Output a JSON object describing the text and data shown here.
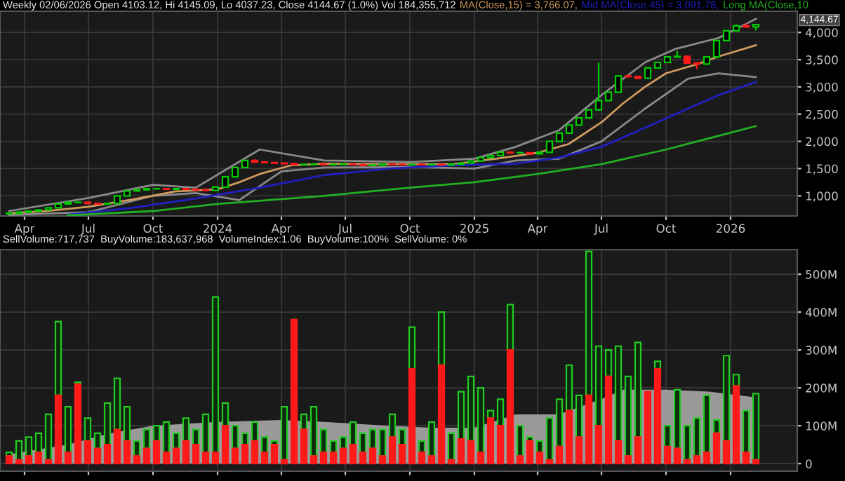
{
  "chart_data": [
    {
      "type": "candlestick",
      "title": "Weekly 02/06/2026 Open 4103.12, Hi 4145.09, Lo 4037.23, Close 4144.67 (1.0%) Vol 184,355,712",
      "legend": "top right",
      "grid": true,
      "tick_labels": [
        "x",
        "y"
      ],
      "x": [
        "2023-03-10",
        "2023-03-24",
        "2023-04-07",
        "2023-04-21",
        "2023-05-05",
        "2023-05-19",
        "2023-06-02",
        "2023-06-16",
        "2023-06-30",
        "2023-07-14",
        "2023-07-28",
        "2023-08-11",
        "2023-08-25",
        "2023-09-08",
        "2023-09-22",
        "2023-10-06",
        "2023-10-20",
        "2023-11-03",
        "2023-11-17",
        "2023-12-01",
        "2023-12-15",
        "2023-12-29",
        "2024-01-12",
        "2024-01-26",
        "2024-02-09",
        "2024-02-23",
        "2024-03-08",
        "2024-03-22",
        "2024-04-05",
        "2024-04-19",
        "2024-05-03",
        "2024-05-17",
        "2024-05-31",
        "2024-06-14",
        "2024-06-28",
        "2024-07-12",
        "2024-07-26",
        "2024-08-09",
        "2024-08-23",
        "2024-09-06",
        "2024-09-20",
        "2024-10-04",
        "2024-10-18",
        "2024-11-01",
        "2024-11-15",
        "2024-11-29",
        "2024-12-13",
        "2024-12-27",
        "2025-01-10",
        "2025-01-24",
        "2025-02-07",
        "2025-02-21",
        "2025-03-07",
        "2025-03-21",
        "2025-04-04",
        "2025-04-18",
        "2025-05-02",
        "2025-05-16",
        "2025-05-30",
        "2025-06-13",
        "2025-06-27",
        "2025-07-11",
        "2025-07-25",
        "2025-08-08",
        "2025-08-22",
        "2025-09-05",
        "2025-09-19",
        "2025-10-03",
        "2025-10-17",
        "2025-10-31",
        "2025-11-14",
        "2025-11-28",
        "2025-12-12",
        "2025-12-26",
        "2026-01-09",
        "2026-01-23",
        "2026-02-06"
      ],
      "ohlc": [
        [
          670,
          690,
          660,
          680
        ],
        [
          680,
          710,
          670,
          700
        ],
        [
          700,
          730,
          690,
          720
        ],
        [
          720,
          750,
          710,
          740
        ],
        [
          740,
          790,
          730,
          780
        ],
        [
          780,
          860,
          770,
          850
        ],
        [
          850,
          890,
          840,
          880
        ],
        [
          880,
          895,
          865,
          880
        ],
        [
          880,
          890,
          850,
          860
        ],
        [
          860,
          870,
          840,
          850
        ],
        [
          850,
          870,
          840,
          860
        ],
        [
          860,
          1010,
          850,
          1000
        ],
        [
          1000,
          1100,
          990,
          1090
        ],
        [
          1090,
          1120,
          1080,
          1110
        ],
        [
          1110,
          1140,
          1100,
          1130
        ],
        [
          1130,
          1145,
          1115,
          1130
        ],
        [
          1130,
          1140,
          1110,
          1120
        ],
        [
          1120,
          1140,
          1110,
          1130
        ],
        [
          1130,
          1140,
          1110,
          1120
        ],
        [
          1120,
          1130,
          1100,
          1110
        ],
        [
          1110,
          1120,
          1090,
          1100
        ],
        [
          1100,
          1170,
          1090,
          1160
        ],
        [
          1160,
          1360,
          1150,
          1350
        ],
        [
          1350,
          1530,
          1340,
          1520
        ],
        [
          1520,
          1660,
          1510,
          1650
        ],
        [
          1650,
          1670,
          1610,
          1620
        ],
        [
          1620,
          1630,
          1600,
          1610
        ],
        [
          1610,
          1620,
          1590,
          1600
        ],
        [
          1600,
          1610,
          1580,
          1590
        ],
        [
          1590,
          1600,
          1560,
          1570
        ],
        [
          1570,
          1585,
          1560,
          1575
        ],
        [
          1575,
          1590,
          1565,
          1580
        ],
        [
          1580,
          1590,
          1560,
          1570
        ],
        [
          1570,
          1585,
          1560,
          1575
        ],
        [
          1575,
          1590,
          1565,
          1580
        ],
        [
          1580,
          1590,
          1560,
          1570
        ],
        [
          1570,
          1580,
          1550,
          1560
        ],
        [
          1560,
          1575,
          1550,
          1565
        ],
        [
          1565,
          1590,
          1555,
          1580
        ],
        [
          1580,
          1590,
          1565,
          1575
        ],
        [
          1575,
          1585,
          1560,
          1570
        ],
        [
          1570,
          1585,
          1560,
          1575
        ],
        [
          1575,
          1585,
          1560,
          1570
        ],
        [
          1570,
          1585,
          1560,
          1575
        ],
        [
          1575,
          1585,
          1555,
          1565
        ],
        [
          1565,
          1590,
          1555,
          1580
        ],
        [
          1580,
          1610,
          1570,
          1600
        ],
        [
          1600,
          1650,
          1590,
          1640
        ],
        [
          1640,
          1710,
          1630,
          1700
        ],
        [
          1700,
          1750,
          1690,
          1740
        ],
        [
          1740,
          1810,
          1730,
          1800
        ],
        [
          1800,
          1820,
          1780,
          1790
        ],
        [
          1790,
          1810,
          1780,
          1790
        ],
        [
          1790,
          1800,
          1760,
          1770
        ],
        [
          1770,
          1810,
          1760,
          1800
        ],
        [
          1800,
          2010,
          1790,
          2000
        ],
        [
          2000,
          2160,
          1990,
          2150
        ],
        [
          2150,
          2310,
          2140,
          2300
        ],
        [
          2300,
          2440,
          2290,
          2430
        ],
        [
          2430,
          2590,
          2420,
          2580
        ],
        [
          2580,
          3450,
          2570,
          2750
        ],
        [
          2750,
          2910,
          2740,
          2900
        ],
        [
          2900,
          3210,
          2890,
          3200
        ],
        [
          3200,
          3220,
          3170,
          3190
        ],
        [
          3190,
          3200,
          3140,
          3160
        ],
        [
          3160,
          3360,
          3150,
          3350
        ],
        [
          3350,
          3460,
          3340,
          3450
        ],
        [
          3450,
          3560,
          3440,
          3550
        ],
        [
          3550,
          3660,
          3540,
          3560
        ],
        [
          3560,
          3570,
          3420,
          3440
        ],
        [
          3440,
          3450,
          3330,
          3420
        ],
        [
          3420,
          3560,
          3410,
          3550
        ],
        [
          3550,
          3860,
          3540,
          3850
        ],
        [
          3850,
          4040,
          3840,
          4030
        ],
        [
          4030,
          4150,
          4020,
          4120
        ],
        [
          4120,
          4170,
          4090,
          4100
        ],
        [
          4103.12,
          4145.09,
          4037.23,
          4144.67
        ]
      ],
      "series": [
        {
          "type": "line",
          "color": "#8a8a8a",
          "x": [
            "2023-03-10",
            "2023-07-01",
            "2023-10-01",
            "2023-12-01",
            "2024-03-01",
            "2024-06-01",
            "2024-10-01",
            "2025-01-01",
            "2025-03-01",
            "2025-05-01",
            "2025-07-01",
            "2025-09-01",
            "2025-10-15",
            "2025-12-15",
            "2026-02-06"
          ],
          "values": [
            720,
            960,
            1200,
            1150,
            1850,
            1650,
            1620,
            1680,
            1900,
            2200,
            2850,
            3450,
            3700,
            3900,
            4250
          ]
        },
        {
          "type": "line",
          "color": "#8a8a8a",
          "x": [
            "2023-03-10",
            "2023-07-01",
            "2023-10-01",
            "2023-12-01",
            "2024-02-01",
            "2024-04-01",
            "2024-06-01",
            "2024-10-01",
            "2025-01-01",
            "2025-03-01",
            "2025-05-01",
            "2025-07-01",
            "2025-09-01",
            "2025-11-01",
            "2025-12-15",
            "2026-02-06"
          ],
          "values": [
            650,
            700,
            1000,
            1050,
            920,
            1450,
            1520,
            1530,
            1500,
            1650,
            1680,
            2000,
            2600,
            3150,
            3250,
            3180
          ]
        },
        {
          "type": "line",
          "name": "MA(Close,15) = 3,766.07,",
          "color": "#d09a60",
          "x": [
            "2023-03-10",
            "2023-05-01",
            "2023-07-01",
            "2023-09-01",
            "2023-11-01",
            "2024-01-01",
            "2024-02-01",
            "2024-03-01",
            "2024-04-15",
            "2024-06-01",
            "2024-09-01",
            "2024-12-01",
            "2025-02-01",
            "2025-04-01",
            "2025-05-15",
            "2025-07-01",
            "2025-08-01",
            "2025-09-01",
            "2025-10-01",
            "2025-11-15",
            "2025-12-15",
            "2026-02-06"
          ],
          "values": [
            680,
            720,
            800,
            930,
            1080,
            1120,
            1250,
            1400,
            1560,
            1590,
            1580,
            1580,
            1680,
            1790,
            1950,
            2350,
            2700,
            3000,
            3250,
            3420,
            3560,
            3766.07
          ]
        },
        {
          "type": "line",
          "name": "Mid MA(Close,45) = 3,091.78,",
          "color": "#2020c0",
          "x": [
            "2023-06-01",
            "2023-09-01",
            "2023-12-01",
            "2024-03-01",
            "2024-06-01",
            "2024-09-01",
            "2024-12-01",
            "2025-03-01",
            "2025-05-01",
            "2025-07-01",
            "2025-09-01",
            "2025-11-01",
            "2025-12-15",
            "2026-02-06"
          ],
          "values": [
            650,
            780,
            950,
            1150,
            1380,
            1500,
            1560,
            1590,
            1700,
            1900,
            2250,
            2600,
            2850,
            3091.78
          ]
        },
        {
          "type": "line",
          "name": "Long MA(Close,10",
          "color": "#22b022",
          "x": [
            "2023-06-01",
            "2023-10-01",
            "2024-01-01",
            "2024-06-01",
            "2024-10-01",
            "2025-01-01",
            "2025-04-01",
            "2025-07-01",
            "2025-10-01",
            "2026-02-06"
          ],
          "values": [
            640,
            720,
            850,
            1000,
            1150,
            1250,
            1400,
            1580,
            1850,
            2280
          ]
        }
      ],
      "xlim": [
        "2023-02-25",
        "2026-04-06"
      ],
      "ylim": [
        630,
        4390
      ],
      "xticks": [
        {
          "value": "2023-04-01",
          "label": "Apr"
        },
        {
          "value": "2023-07-01",
          "label": "Jul"
        },
        {
          "value": "2023-10-01",
          "label": "Oct"
        },
        {
          "value": "2024-01-01",
          "label": "2024"
        },
        {
          "value": "2024-04-01",
          "label": "Apr"
        },
        {
          "value": "2024-07-01",
          "label": "Jul"
        },
        {
          "value": "2024-10-01",
          "label": "Oct"
        },
        {
          "value": "2025-01-01",
          "label": "2025"
        },
        {
          "value": "2025-04-01",
          "label": "Apr"
        },
        {
          "value": "2025-07-01",
          "label": "Jul"
        },
        {
          "value": "2025-10-01",
          "label": "Oct"
        },
        {
          "value": "2026-01-01",
          "label": "2026"
        }
      ],
      "yticks": [
        {
          "value": 1000,
          "label": "1,000"
        },
        {
          "value": 1500,
          "label": "1,500"
        },
        {
          "value": 2000,
          "label": "2,000"
        },
        {
          "value": 2500,
          "label": "2,500"
        },
        {
          "value": 3000,
          "label": "3,000"
        },
        {
          "value": 3500,
          "label": "3,500"
        },
        {
          "value": 4000,
          "label": "4,000"
        }
      ],
      "annotations": [
        "4,144.67"
      ]
    },
    {
      "type": "bar",
      "stacked": true,
      "title": "SellVolume:717,737  BuyVolume:183,637,968  VolumeIndex:1.06  BuyVolume:100%  SellVolume: 0%",
      "grid": true,
      "tick_labels": "y",
      "x": [
        "2023-03-10",
        "2023-03-24",
        "2023-04-07",
        "2023-04-21",
        "2023-05-05",
        "2023-05-19",
        "2023-06-02",
        "2023-06-16",
        "2023-06-30",
        "2023-07-14",
        "2023-07-28",
        "2023-08-11",
        "2023-08-25",
        "2023-09-08",
        "2023-09-22",
        "2023-10-06",
        "2023-10-20",
        "2023-11-03",
        "2023-11-17",
        "2023-12-01",
        "2023-12-15",
        "2023-12-29",
        "2024-01-12",
        "2024-01-26",
        "2024-02-09",
        "2024-02-23",
        "2024-03-08",
        "2024-03-22",
        "2024-04-05",
        "2024-04-19",
        "2024-05-03",
        "2024-05-17",
        "2024-05-31",
        "2024-06-14",
        "2024-06-28",
        "2024-07-12",
        "2024-07-26",
        "2024-08-09",
        "2024-08-23",
        "2024-09-06",
        "2024-09-20",
        "2024-10-04",
        "2024-10-18",
        "2024-11-01",
        "2024-11-15",
        "2024-11-29",
        "2024-12-13",
        "2024-12-27",
        "2025-01-10",
        "2025-01-24",
        "2025-02-07",
        "2025-02-21",
        "2025-03-07",
        "2025-03-21",
        "2025-04-04",
        "2025-04-18",
        "2025-05-02",
        "2025-05-16",
        "2025-05-30",
        "2025-06-13",
        "2025-06-27",
        "2025-07-11",
        "2025-07-25",
        "2025-08-08",
        "2025-08-22",
        "2025-09-05",
        "2025-09-19",
        "2025-10-03",
        "2025-10-17",
        "2025-10-31",
        "2025-11-14",
        "2025-11-28",
        "2025-12-12",
        "2025-12-26",
        "2026-01-09",
        "2026-01-23",
        "2026-02-06"
      ],
      "series": [
        {
          "type": "area",
          "color": "#9a9a9a",
          "x": [
            "2023-03-10",
            "2023-06-01",
            "2023-08-01",
            "2023-10-01",
            "2024-01-01",
            "2024-04-01",
            "2024-06-01",
            "2024-09-01",
            "2024-11-01",
            "2025-01-01",
            "2025-03-01",
            "2025-05-01",
            "2025-07-01",
            "2025-08-01",
            "2025-10-01",
            "2025-12-01",
            "2026-02-06"
          ],
          "values": [
            25,
            50,
            80,
            100,
            110,
            115,
            110,
            100,
            95,
            95,
            130,
            130,
            170,
            195,
            195,
            190,
            175
          ]
        },
        {
          "type": "bar",
          "color": "#ff1a1a",
          "values": [
            20,
            10,
            20,
            30,
            10,
            180,
            30,
            210,
            60,
            40,
            50,
            90,
            60,
            20,
            40,
            60,
            30,
            40,
            60,
            50,
            30,
            30,
            100,
            40,
            50,
            60,
            30,
            50,
            10,
            380,
            90,
            20,
            30,
            30,
            40,
            50,
            30,
            40,
            20,
            70,
            50,
            250,
            30,
            20,
            260,
            10,
            65,
            60,
            30,
            120,
            100,
            300,
            20,
            60,
            30,
            10,
            45,
            140,
            70,
            180,
            100,
            230,
            60,
            20,
            70,
            190,
            250,
            45,
            40,
            10,
            20,
            30,
            80,
            60,
            205,
            30,
            10
          ]
        },
        {
          "type": "bar",
          "color": "#22cc22",
          "values": [
            10,
            50,
            50,
            50,
            120,
            195,
            120,
            5,
            60,
            40,
            110,
            135,
            90,
            40,
            50,
            40,
            80,
            40,
            60,
            40,
            100,
            410,
            60,
            60,
            30,
            50,
            40,
            10,
            140,
            0,
            40,
            130,
            60,
            30,
            30,
            60,
            50,
            50,
            70,
            60,
            40,
            110,
            30,
            90,
            140,
            70,
            125,
            170,
            170,
            20,
            70,
            120,
            80,
            10,
            30,
            110,
            125,
            120,
            110,
            380,
            210,
            70,
            250,
            210,
            250,
            0,
            20,
            55,
            155,
            90,
            100,
            150,
            35,
            225,
            30,
            110,
            175
          ]
        }
      ],
      "xlim": [
        "2023-02-25",
        "2026-04-06"
      ],
      "ylim": [
        -20,
        565
      ],
      "xticks": [
        "2023-04-01",
        "2023-07-01",
        "2023-10-01",
        "2024-01-01",
        "2024-04-01",
        "2024-07-01",
        "2024-10-01",
        "2025-01-01",
        "2025-04-01",
        "2025-07-01",
        "2025-10-01",
        "2026-01-01"
      ],
      "yticks": [
        0,
        {
          "value": 100,
          "label": "100M"
        },
        {
          "value": 200,
          "label": "200M"
        },
        {
          "value": 300,
          "label": "300M"
        },
        {
          "value": 400,
          "label": "400M"
        },
        {
          "value": 500,
          "label": "500M"
        }
      ]
    }
  ]
}
